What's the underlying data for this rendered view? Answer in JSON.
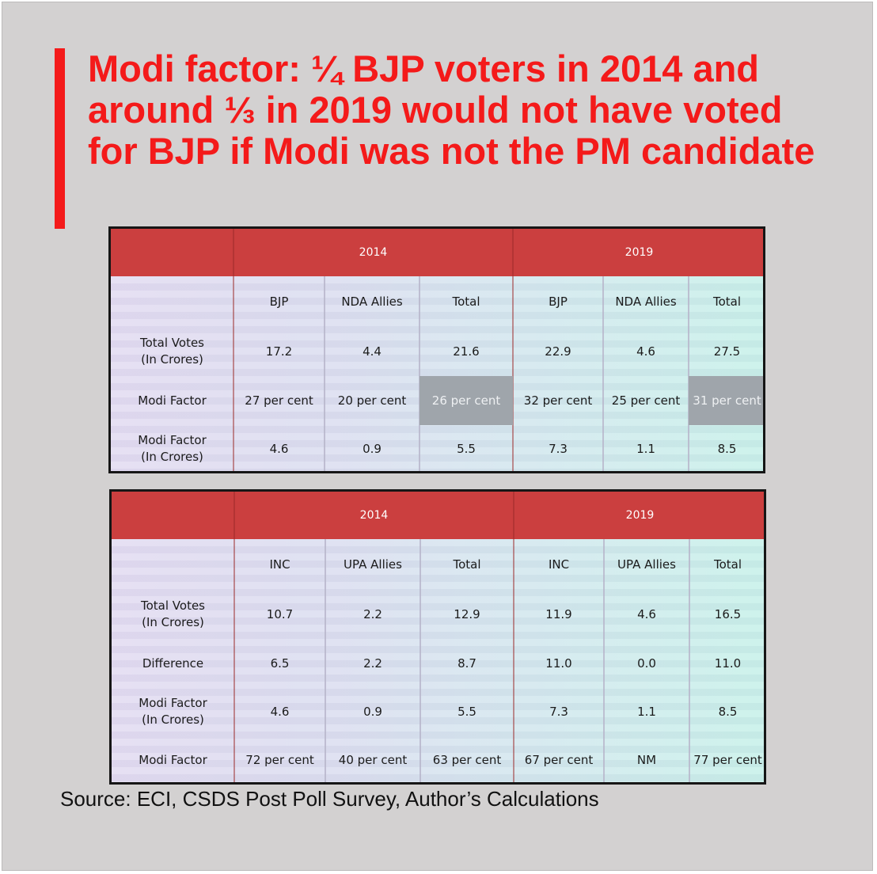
{
  "headline": "Modi factor: ¼ BJP voters in 2014 and\naround ⅓ in 2019 would not have voted\nfor BJP if Modi was not the PM candidate",
  "colors": {
    "accent": "#f41a1a",
    "header_red": "#cb3f3f",
    "highlight_gray": "#9fa5ab"
  },
  "table1": {
    "years": [
      "2014",
      "2019"
    ],
    "columns": [
      "BJP",
      "NDA Allies",
      "Total",
      "BJP",
      "NDA Allies",
      "Total"
    ],
    "rows": [
      {
        "label": "Total Votes\n(In Crores)",
        "values": [
          "17.2",
          "4.4",
          "21.6",
          "22.9",
          "4.6",
          "27.5"
        ]
      },
      {
        "label": "Modi Factor",
        "values": [
          "27 per cent",
          "20 per cent",
          "26 per cent",
          "32 per cent",
          "25 per cent",
          "31 per cent"
        ]
      },
      {
        "label": "Modi Factor\n(In Crores)",
        "values": [
          "4.6",
          "0.9",
          "5.5",
          "7.3",
          "1.1",
          "8.5"
        ]
      }
    ]
  },
  "table2": {
    "years": [
      "2014",
      "2019"
    ],
    "columns": [
      "INC",
      "UPA Allies",
      "Total",
      "INC",
      "UPA Allies",
      "Total"
    ],
    "rows": [
      {
        "label": "Total Votes\n(In Crores)",
        "values": [
          "10.7",
          "2.2",
          "12.9",
          "11.9",
          "4.6",
          "16.5"
        ]
      },
      {
        "label": "Difference",
        "values": [
          "6.5",
          "2.2",
          "8.7",
          "11.0",
          "0.0",
          "11.0"
        ]
      },
      {
        "label": "Modi Factor\n(In Crores)",
        "values": [
          "4.6",
          "0.9",
          "5.5",
          "7.3",
          "1.1",
          "8.5"
        ]
      },
      {
        "label": "Modi Factor",
        "values": [
          "72 per cent",
          "40 per cent",
          "63 per cent",
          "67 per cent",
          "NM",
          "77 per cent"
        ]
      }
    ]
  },
  "source": "Source: ECI, CSDS Post Poll Survey, Author’s Calculations"
}
